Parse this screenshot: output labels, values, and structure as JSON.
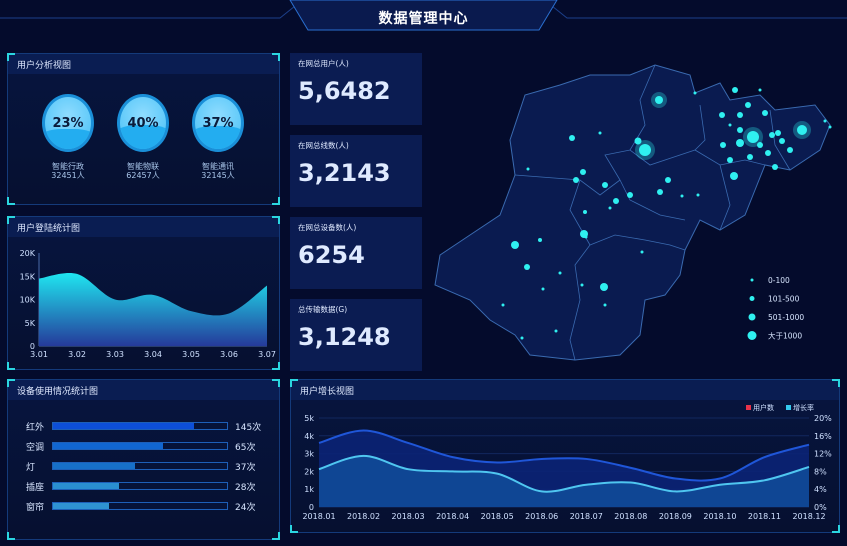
{
  "header": {
    "title": "数据管理中心"
  },
  "user_analysis": {
    "title": "用户分析视图",
    "items": [
      {
        "percent": "23%",
        "fill": 0.23,
        "name": "智能行政",
        "count": "32451人"
      },
      {
        "percent": "40%",
        "fill": 0.4,
        "name": "智能物联",
        "count": "62457人"
      },
      {
        "percent": "37%",
        "fill": 0.37,
        "name": "智能通讯",
        "count": "32145人"
      }
    ]
  },
  "stats": [
    {
      "label": "在网总用户(人)",
      "value": "5,6482"
    },
    {
      "label": "在网总线数(人)",
      "value": "3,2143"
    },
    {
      "label": "在网总设备数(人)",
      "value": "6254"
    },
    {
      "label": "总传输数据(G)",
      "value": "3,1248"
    }
  ],
  "map": {
    "legend": [
      "0-100",
      "101-500",
      "501-1000",
      "大于1000"
    ],
    "dot_color": "#2ff0f0"
  },
  "device_usage": {
    "title": "设备使用情况统计图",
    "items": [
      {
        "name": "红外",
        "value": "145次",
        "fill": 0.81,
        "color": "#0d4fd8"
      },
      {
        "name": "空调",
        "value": "65次",
        "fill": 0.63,
        "color": "#1166d0"
      },
      {
        "name": "灯",
        "value": "37次",
        "fill": 0.47,
        "color": "#1770c8"
      },
      {
        "name": "插座",
        "value": "28次",
        "fill": 0.38,
        "color": "#2a8fd0"
      },
      {
        "name": "窗帘",
        "value": "24次",
        "fill": 0.32,
        "color": "#2f93d2"
      }
    ]
  },
  "chart_data": [
    {
      "type": "area",
      "title": "用户登陆统计图",
      "categories": [
        "3.01",
        "3.02",
        "3.03",
        "3.04",
        "3.05",
        "3.06",
        "3.07"
      ],
      "values": [
        14500,
        15500,
        10000,
        11000,
        7500,
        7000,
        13000
      ],
      "ylim": [
        0,
        20000
      ],
      "yticks": [
        "0",
        "5K",
        "10K",
        "15K",
        "20K"
      ]
    },
    {
      "type": "area",
      "title": "用户增长视图",
      "categories": [
        "2018.01",
        "2018.02",
        "2018.03",
        "2018.04",
        "2018.05",
        "2018.06",
        "2018.07",
        "2018.08",
        "2018.09",
        "2018.10",
        "2018.11",
        "2018.12"
      ],
      "series": [
        {
          "name": "用户数",
          "axis": "left",
          "values": [
            3600,
            4300,
            3600,
            2800,
            2500,
            2700,
            2700,
            2200,
            1600,
            1600,
            2800,
            3500
          ],
          "legend_color": "#e8334a",
          "color": "#1f56d8"
        },
        {
          "name": "增长率",
          "axis": "right",
          "values": [
            8.5,
            11.5,
            8.5,
            8,
            7.5,
            3.5,
            5,
            5.5,
            3.5,
            5,
            6,
            9
          ],
          "legend_color": "#35c9ee",
          "color": "#4fc6f0"
        }
      ],
      "ylim_left": [
        0,
        5000
      ],
      "ylim_right": [
        0,
        20
      ],
      "yticks_left": [
        "0",
        "1k",
        "2k",
        "3k",
        "4k",
        "5k"
      ],
      "yticks_right": [
        "0%",
        "4%",
        "8%",
        "12%",
        "16%",
        "20%"
      ]
    }
  ]
}
